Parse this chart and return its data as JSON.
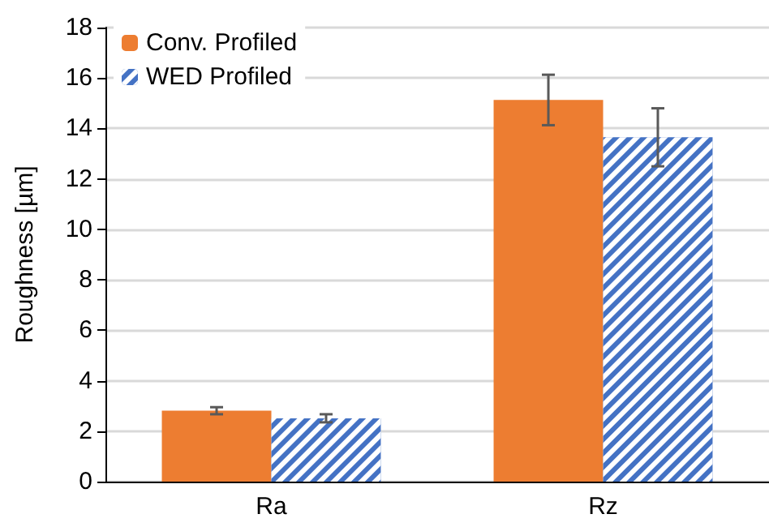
{
  "chart_data": {
    "type": "bar",
    "ylabel": "Roughness [µm]",
    "categories": [
      "Ra",
      "Rz"
    ],
    "series": [
      {
        "name": "Conv. Profiled",
        "color": "#ed7d31",
        "values": [
          2.81,
          15.13
        ],
        "errors": [
          0.14,
          1.0
        ]
      },
      {
        "name": "WED Profiled",
        "color": "#4472c4",
        "values": [
          2.51,
          13.65
        ],
        "errors": [
          0.16,
          1.15
        ]
      }
    ],
    "ylim": [
      0,
      18
    ],
    "yticks": [
      0,
      2,
      4,
      6,
      8,
      10,
      12,
      14,
      16,
      18
    ],
    "grid": "y",
    "legend": "top left"
  }
}
